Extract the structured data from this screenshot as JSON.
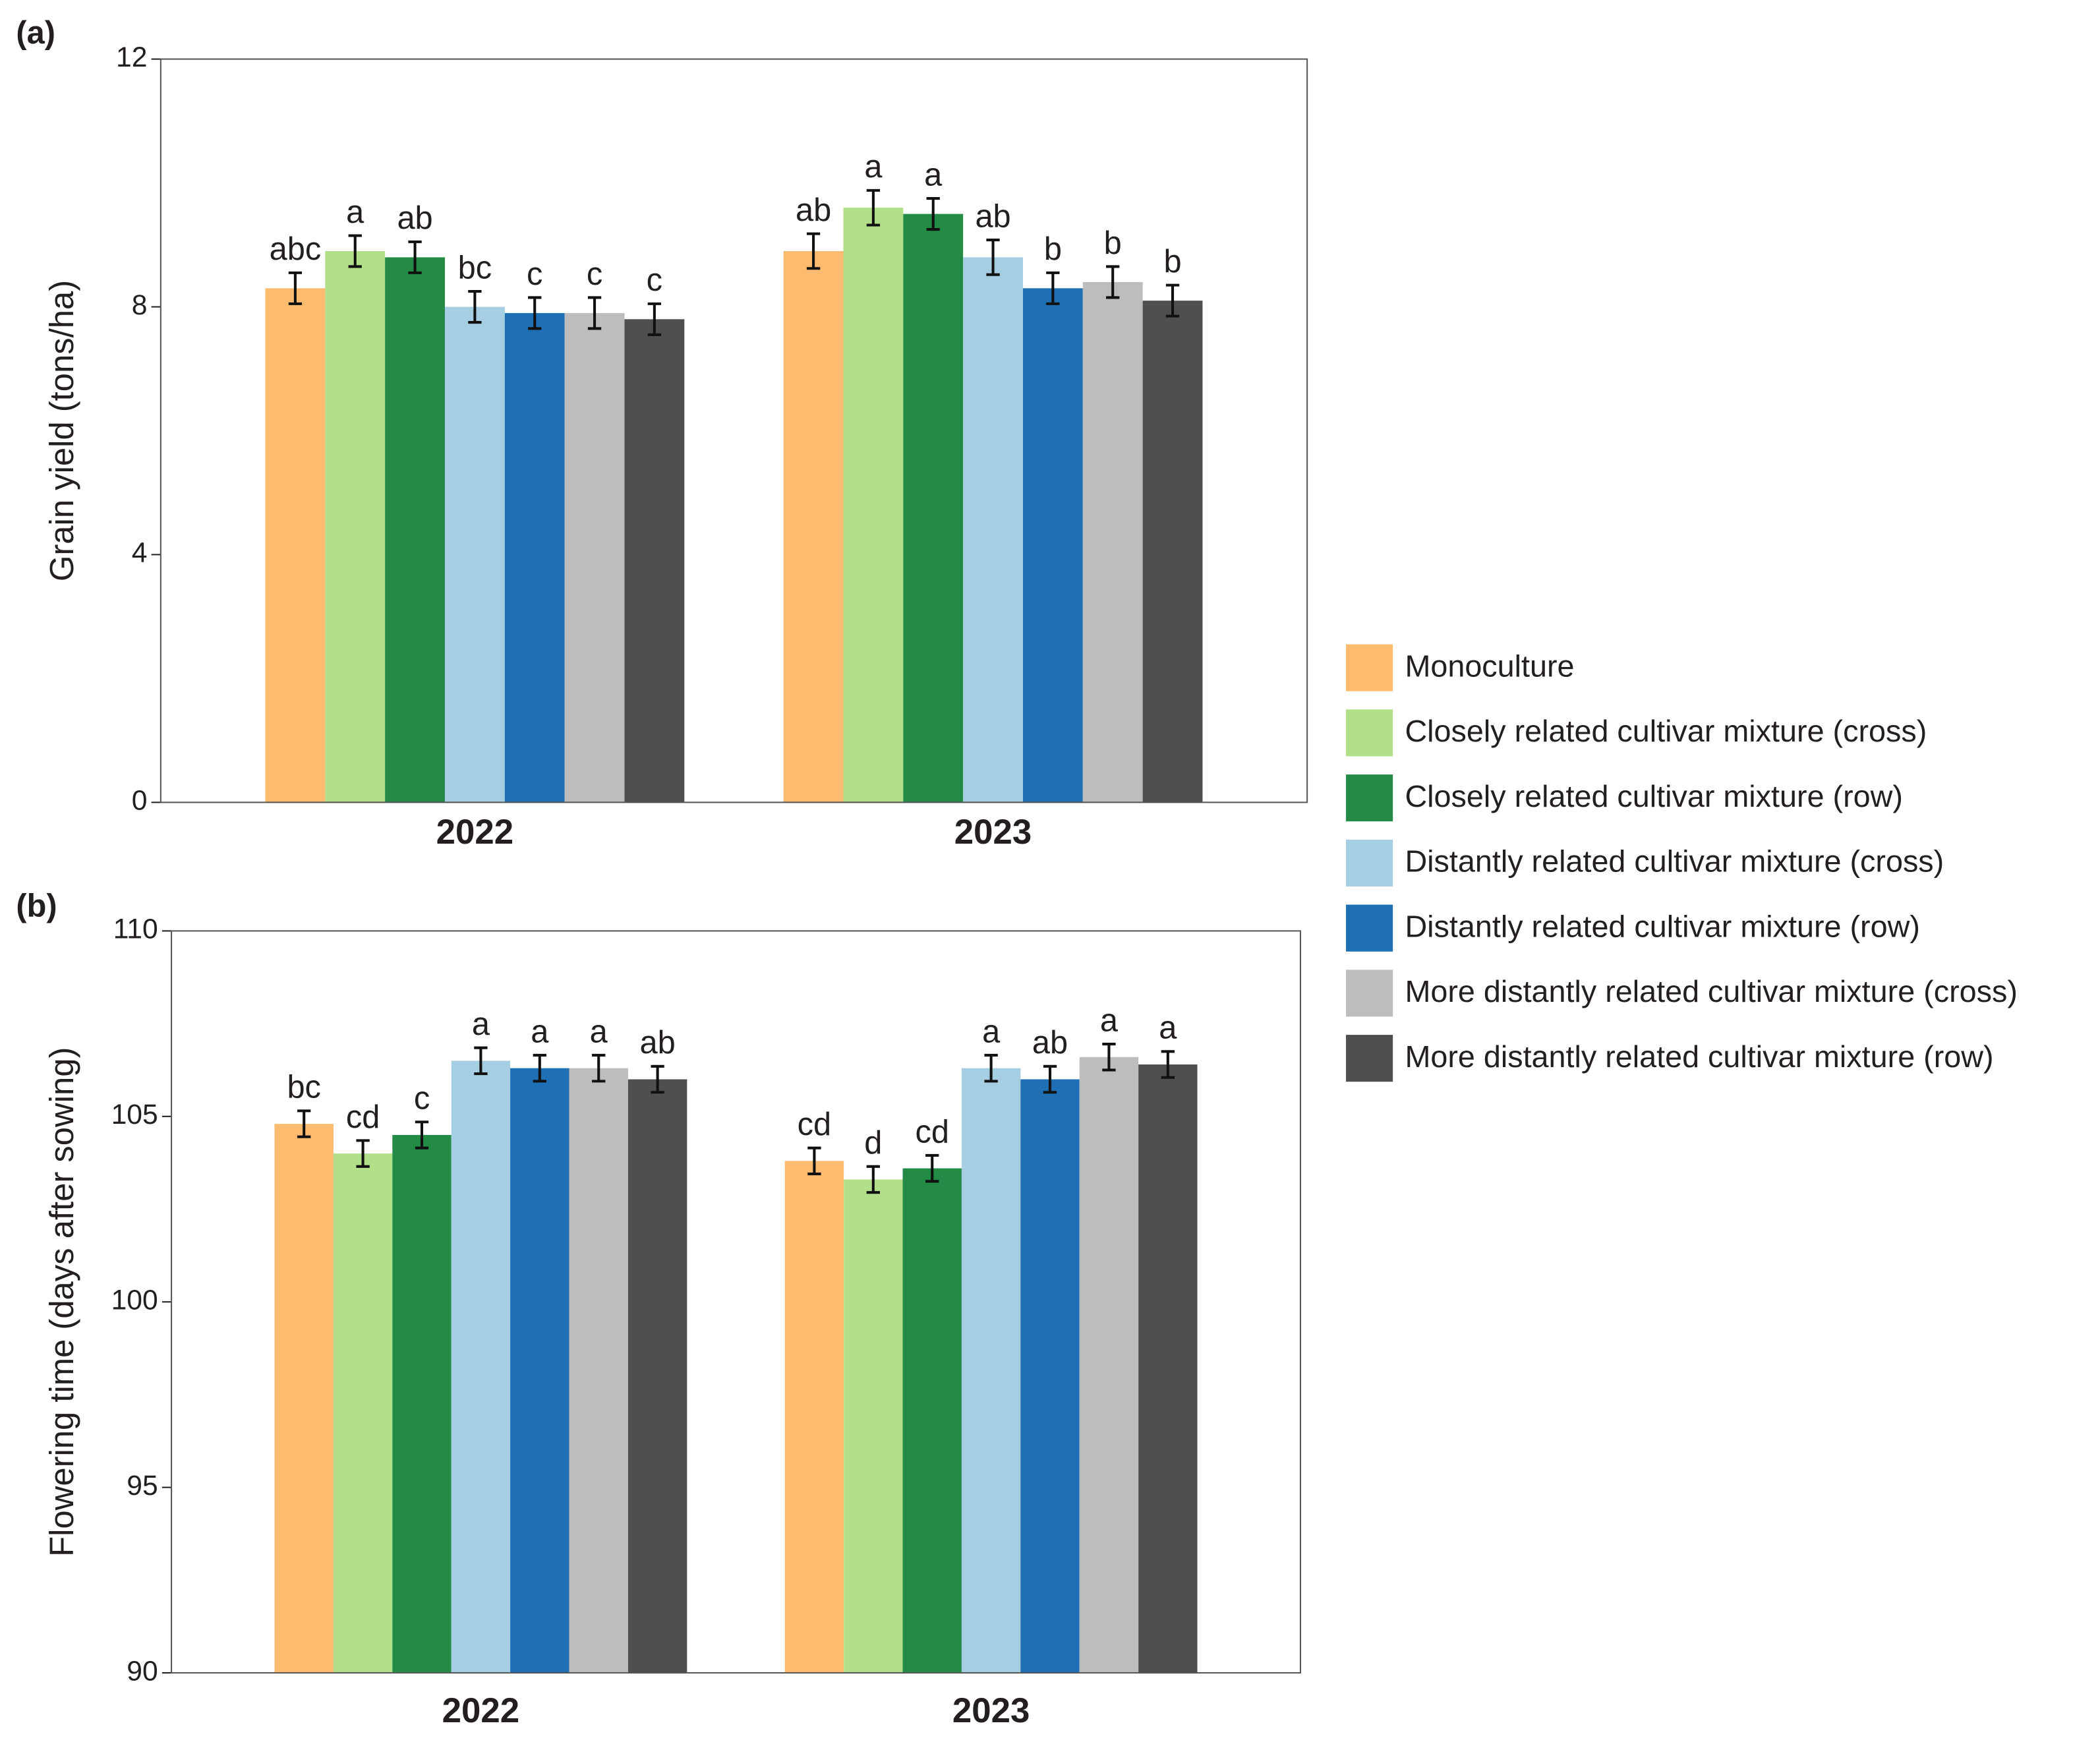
{
  "chart_data": [
    {
      "type": "bar",
      "panel_label": "(a)",
      "ylabel": "Grain yield (tons/ha)",
      "categories": [
        "2022",
        "2023"
      ],
      "ylim": [
        0,
        12
      ],
      "yticks": [
        0,
        4,
        8,
        12
      ],
      "series": [
        {
          "name": "Monoculture",
          "color": "#fdbb6f",
          "values": [
            8.3,
            8.9
          ],
          "errors": [
            0.25,
            0.28
          ],
          "labels": [
            "abc",
            "ab"
          ]
        },
        {
          "name": "Closely related cultivar mixture (cross)",
          "color": "#b2df8a",
          "values": [
            8.9,
            9.6
          ],
          "errors": [
            0.25,
            0.28
          ],
          "labels": [
            "a",
            "a"
          ]
        },
        {
          "name": "Closely related cultivar mixture (row)",
          "color": "#238b45",
          "values": [
            8.8,
            9.5
          ],
          "errors": [
            0.25,
            0.25
          ],
          "labels": [
            "ab",
            "a"
          ]
        },
        {
          "name": "Distantly related cultivar mixture (cross)",
          "color": "#a6cee3",
          "values": [
            8.0,
            8.8
          ],
          "errors": [
            0.25,
            0.28
          ],
          "labels": [
            "bc",
            "ab"
          ]
        },
        {
          "name": "Distantly related cultivar mixture (row)",
          "color": "#1f6fb4",
          "values": [
            7.9,
            8.3
          ],
          "errors": [
            0.25,
            0.25
          ],
          "labels": [
            "c",
            "b"
          ]
        },
        {
          "name": "More distantly related cultivar mixture (cross)",
          "color": "#bdbdbd",
          "values": [
            7.9,
            8.4
          ],
          "errors": [
            0.25,
            0.25
          ],
          "labels": [
            "c",
            "b"
          ]
        },
        {
          "name": "More distantly related cultivar mixture (row)",
          "color": "#4f4f4f",
          "values": [
            7.8,
            8.1
          ],
          "errors": [
            0.25,
            0.25
          ],
          "labels": [
            "c",
            "b"
          ]
        }
      ]
    },
    {
      "type": "bar",
      "panel_label": "(b)",
      "ylabel": "Flowering time (days after sowing)",
      "categories": [
        "2022",
        "2023"
      ],
      "ylim": [
        90,
        110
      ],
      "yticks": [
        90,
        95,
        100,
        105,
        110
      ],
      "series": [
        {
          "color": "#fdbb6f",
          "values": [
            104.8,
            103.8
          ],
          "errors": [
            0.35,
            0.35
          ],
          "labels": [
            "bc",
            "cd"
          ]
        },
        {
          "color": "#b2df8a",
          "values": [
            104.0,
            103.3
          ],
          "errors": [
            0.35,
            0.35
          ],
          "labels": [
            "cd",
            "d"
          ]
        },
        {
          "color": "#238b45",
          "values": [
            104.5,
            103.6
          ],
          "errors": [
            0.35,
            0.35
          ],
          "labels": [
            "c",
            "cd"
          ]
        },
        {
          "color": "#a6cee3",
          "values": [
            106.5,
            106.3
          ],
          "errors": [
            0.35,
            0.35
          ],
          "labels": [
            "a",
            "a"
          ]
        },
        {
          "color": "#1f6fb4",
          "values": [
            106.3,
            106.0
          ],
          "errors": [
            0.35,
            0.35
          ],
          "labels": [
            "a",
            "ab"
          ]
        },
        {
          "color": "#bdbdbd",
          "values": [
            106.3,
            106.6
          ],
          "errors": [
            0.35,
            0.35
          ],
          "labels": [
            "a",
            "a"
          ]
        },
        {
          "color": "#4f4f4f",
          "values": [
            106.0,
            106.4
          ],
          "errors": [
            0.35,
            0.35
          ],
          "labels": [
            "ab",
            "a"
          ]
        }
      ]
    }
  ]
}
